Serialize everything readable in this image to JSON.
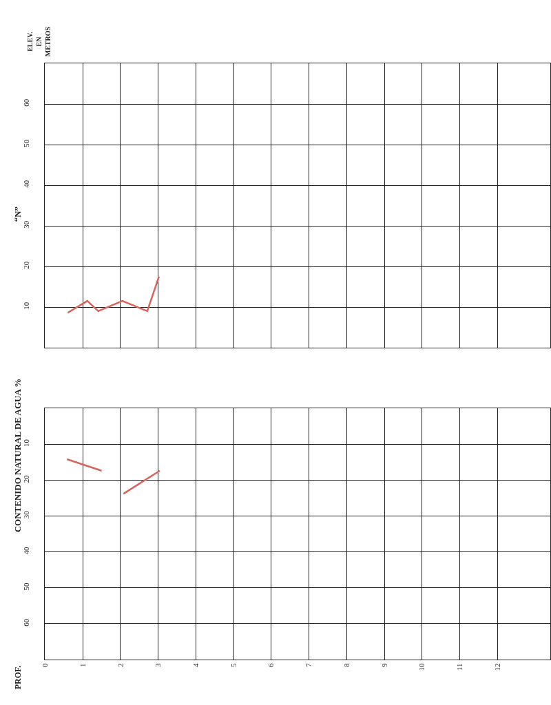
{
  "chart_data": [
    {
      "type": "line",
      "ylabel": "“N”",
      "annotations": [
        "ELEV. EN METROS"
      ],
      "series": [
        {
          "color": "#d9645a",
          "x": [
            0.6,
            1.12,
            1.41,
            2.05,
            2.71,
            3.02
          ],
          "values": [
            8.6,
            11.5,
            9,
            11.5,
            9,
            17.5
          ]
        }
      ],
      "xlim": [
        0,
        13.4
      ],
      "xticks": [
        0,
        1,
        2,
        3,
        4,
        5,
        6,
        7,
        8,
        9,
        10,
        11,
        12
      ],
      "ylim": [
        0,
        70
      ],
      "yticks": [
        10,
        20,
        30,
        40,
        50,
        60
      ],
      "grid": true,
      "tick_labels": "y",
      "marker": "none",
      "line_style": "solid"
    },
    {
      "type": "line",
      "ylabel": "CONTENIDO NATURAL DE AGUA %",
      "annotations": [
        "PROF."
      ],
      "series": [
        {
          "color": "#d9645a",
          "x": [
            0.58,
            1.5,
            1.8,
            2.08,
            3.04
          ],
          "values": [
            14.2,
            17.4,
            null,
            23.8,
            17.4
          ]
        }
      ],
      "xlim": [
        0,
        13.4
      ],
      "xticks": [
        0,
        1,
        2,
        3,
        4,
        5,
        6,
        7,
        8,
        9,
        10,
        11,
        12
      ],
      "ylim": [
        70,
        0
      ],
      "yticks": [
        10,
        20,
        30,
        40,
        50,
        60
      ],
      "grid": true,
      "marker": "none",
      "line_style": "solid"
    }
  ]
}
